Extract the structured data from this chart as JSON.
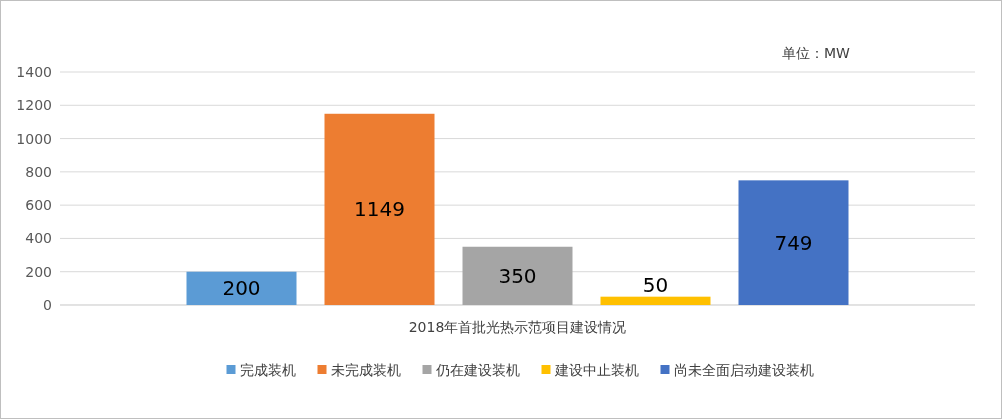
{
  "chart_data": {
    "type": "bar",
    "categories": [
      "2018年首批光热示范项目建设情况"
    ],
    "series": [
      {
        "name": "完成装机",
        "color": "#5b9bd5",
        "values": [
          200
        ]
      },
      {
        "name": "未完成装机",
        "color": "#ed7d31",
        "values": [
          1149
        ]
      },
      {
        "name": "仍在建设装机",
        "color": "#a5a5a5",
        "values": [
          350
        ]
      },
      {
        "name": "建设中止装机",
        "color": "#ffc000",
        "values": [
          50
        ]
      },
      {
        "name": "尚未全面启动建设装机",
        "color": "#4472c4",
        "values": [
          749
        ]
      }
    ],
    "ylim": [
      0,
      1400
    ],
    "yticks": [
      0,
      200,
      400,
      600,
      800,
      1000,
      1200,
      1400
    ],
    "grid": "y",
    "legend": "bottom",
    "data_labels": true,
    "annotations": [
      "单位：MW"
    ]
  }
}
